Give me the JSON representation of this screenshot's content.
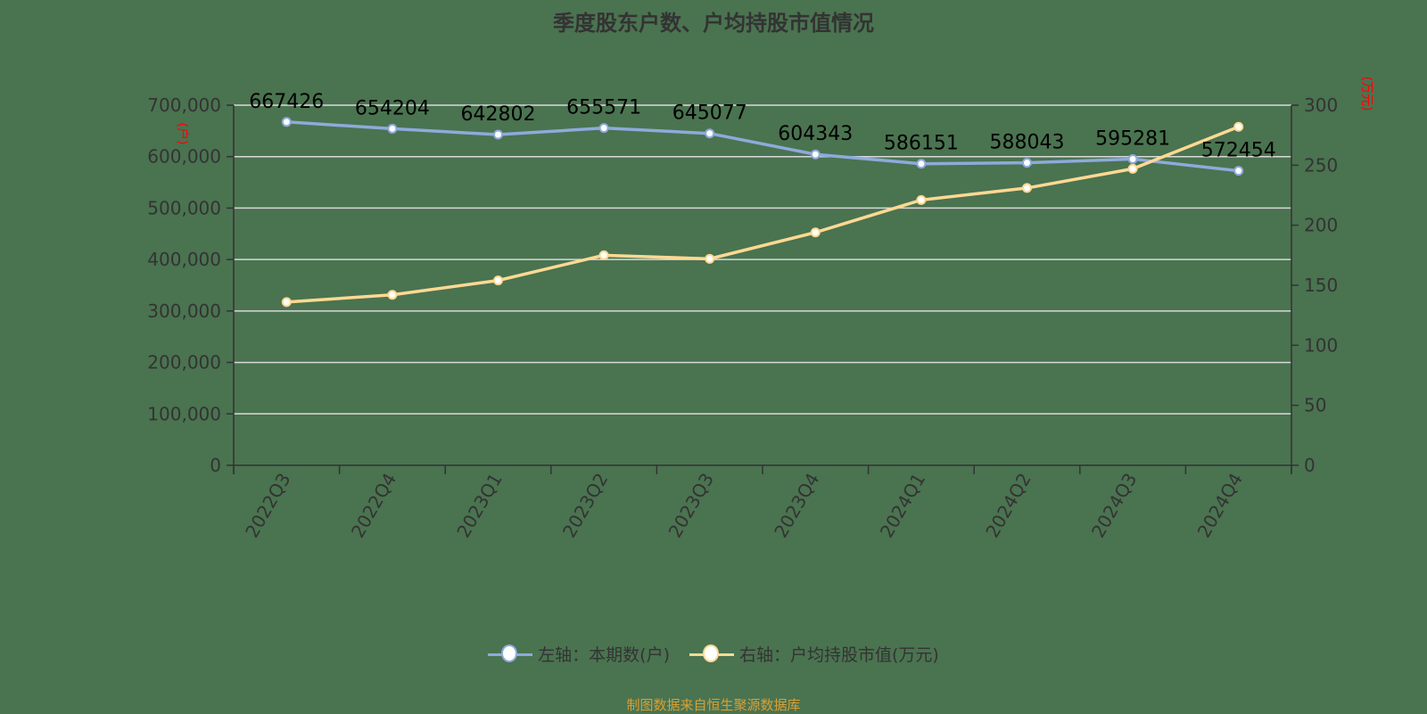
{
  "title": "季度股东户数、户均持股市值情况",
  "left_axis_unit": "(户)",
  "right_axis_unit": "(万元)",
  "legend": [
    {
      "label": "左轴：本期数(户)",
      "color": "#8eaadb"
    },
    {
      "label": "右轴：户均持股市值(万元)",
      "color": "#ffd993"
    }
  ],
  "source": "制图数据来自恒生聚源数据库",
  "colors": {
    "background": "#4a7350",
    "series_left": "#8eaadb",
    "series_right": "#ffd993",
    "grid": "#d9d9d9",
    "axis": "#333333",
    "unit_label": "#ff0000",
    "source": "#d9a033"
  },
  "chart_data": {
    "type": "line",
    "title": "季度股东户数、户均持股市值情况",
    "categories": [
      "2022Q3",
      "2022Q4",
      "2023Q1",
      "2023Q2",
      "2023Q3",
      "2023Q4",
      "2024Q1",
      "2024Q2",
      "2024Q3",
      "2024Q4"
    ],
    "series": [
      {
        "name": "左轴：本期数(户)",
        "axis": "left",
        "values": [
          667426,
          654204,
          642802,
          655571,
          645077,
          604343,
          586151,
          588043,
          595281,
          572454
        ],
        "data_labels": true
      },
      {
        "name": "右轴：户均持股市值(万元)",
        "axis": "right",
        "values": [
          136,
          142,
          154,
          175,
          172,
          194,
          221,
          231,
          247,
          282
        ],
        "data_labels": false
      }
    ],
    "left_axis": {
      "label": "(户)",
      "ylim": [
        0,
        700000
      ],
      "ticks": [
        "0",
        "100,000",
        "200,000",
        "300,000",
        "400,000",
        "500,000",
        "600,000",
        "700,000"
      ]
    },
    "right_axis": {
      "label": "(万元)",
      "ylim": [
        0,
        300
      ],
      "ticks": [
        "0",
        "50",
        "100",
        "150",
        "200",
        "250",
        "300"
      ]
    },
    "grid": true,
    "legend_position": "bottom",
    "xlabel_rotation": -60
  }
}
